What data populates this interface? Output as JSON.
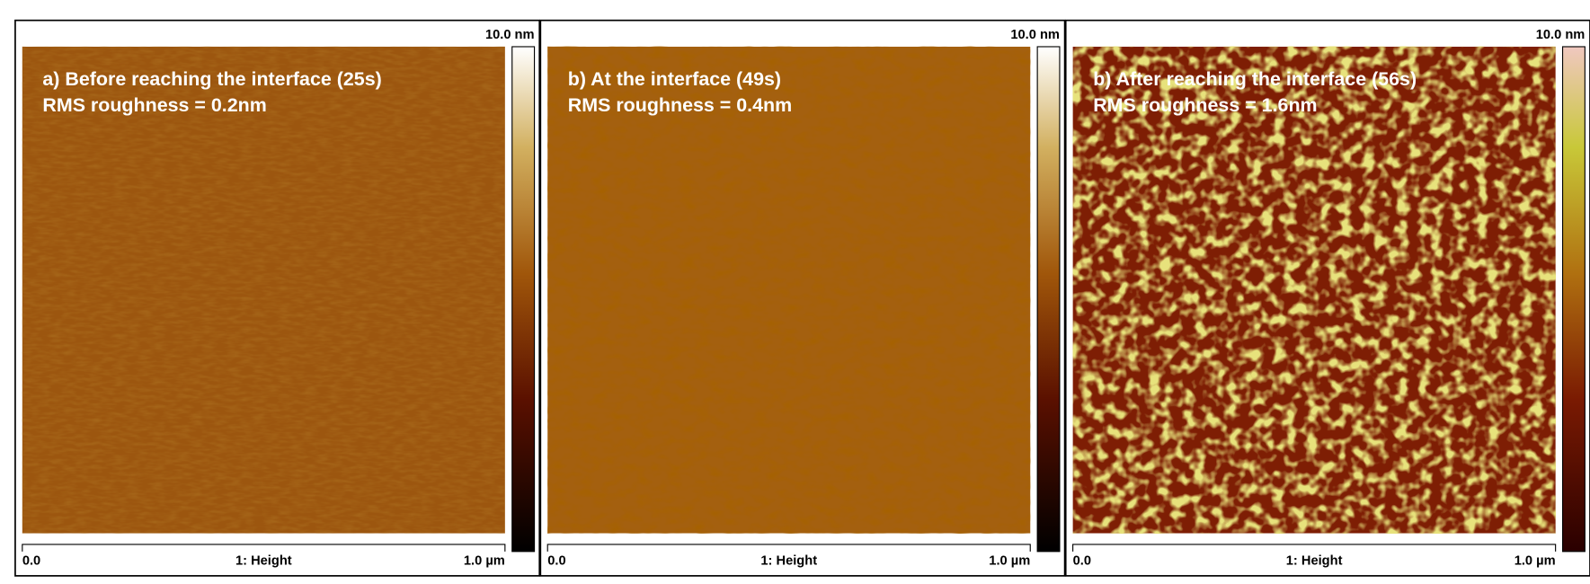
{
  "panels": [
    {
      "annotation": [
        "a) Before reaching the interface (25s)",
        "RMS roughness = 0.2nm"
      ],
      "scale_max": "10.0 nm",
      "axis_start": "0.0",
      "channel": "1: Height",
      "axis_end": "1.0 µm"
    },
    {
      "annotation": [
        "b) At the interface (49s)",
        "RMS roughness = 0.4nm"
      ],
      "scale_max": "10.0 nm",
      "axis_start": "0.0",
      "channel": "1: Height",
      "axis_end": "1.0 µm"
    },
    {
      "annotation": [
        "b) After reaching the interface (56s)",
        "RMS roughness = 1.6nm"
      ],
      "scale_max": "10.0 nm",
      "axis_start": "0.0",
      "channel": "1: Height",
      "axis_end": "1.0 µm"
    }
  ]
}
